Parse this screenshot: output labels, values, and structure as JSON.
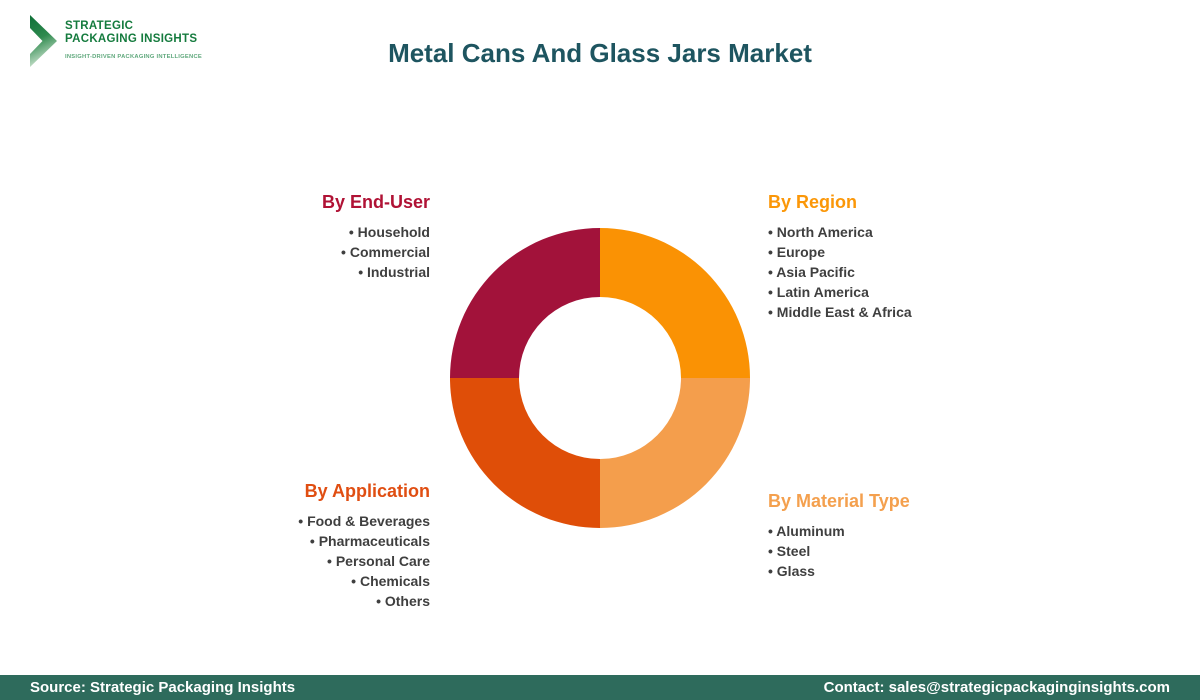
{
  "logo": {
    "line1": "STRATEGIC",
    "line2": "PACKAGING INSIGHTS",
    "tagline": "INSIGHT-DRIVEN PACKAGING INTELLIGENCE",
    "text_color": "#157B3E",
    "tagline_color": "#5FA87C"
  },
  "header": {
    "title": "Metal Cans And Glass Jars Market",
    "title_color": "#1E5560"
  },
  "sections": {
    "end_user": {
      "heading": "By End-User",
      "color": "#B01235",
      "items": [
        "Household",
        "Commercial",
        "Industrial"
      ]
    },
    "region": {
      "heading": "By Region",
      "color": "#FB9708",
      "items": [
        "North America",
        "Europe",
        "Asia Pacific",
        "Latin America",
        "Middle East & Africa"
      ]
    },
    "application": {
      "heading": "By Application",
      "color": "#E04E12",
      "items": [
        "Food & Beverages",
        "Pharmaceuticals",
        "Personal Care",
        "Chemicals",
        "Others"
      ]
    },
    "material": {
      "heading": "By Material Type",
      "color": "#F4A04E",
      "items": [
        "Aluminum",
        "Steel",
        "Glass"
      ]
    }
  },
  "chart_data": {
    "type": "pie",
    "donut": true,
    "title": "Metal Cans And Glass Jars Market segmentation wheel",
    "start_angle_deg": -90,
    "direction": "clockwise",
    "inner_radius_ratio": 0.54,
    "slices": [
      {
        "label": "By Region",
        "value": 25,
        "color": "#FA9204"
      },
      {
        "label": "By Material Type",
        "value": 25,
        "color": "#F49E4C"
      },
      {
        "label": "By Application",
        "value": 25,
        "color": "#DF4E08"
      },
      {
        "label": "By End-User",
        "value": 25,
        "color": "#A2123A"
      }
    ],
    "legend_position": "quadrant-labels-around-donut",
    "values_labelled_on_chart": false
  },
  "footer": {
    "source": "Source: Strategic Packaging Insights",
    "contact": "Contact: sales@strategicpackaginginsights.com",
    "bg": "#2E6B5C"
  }
}
